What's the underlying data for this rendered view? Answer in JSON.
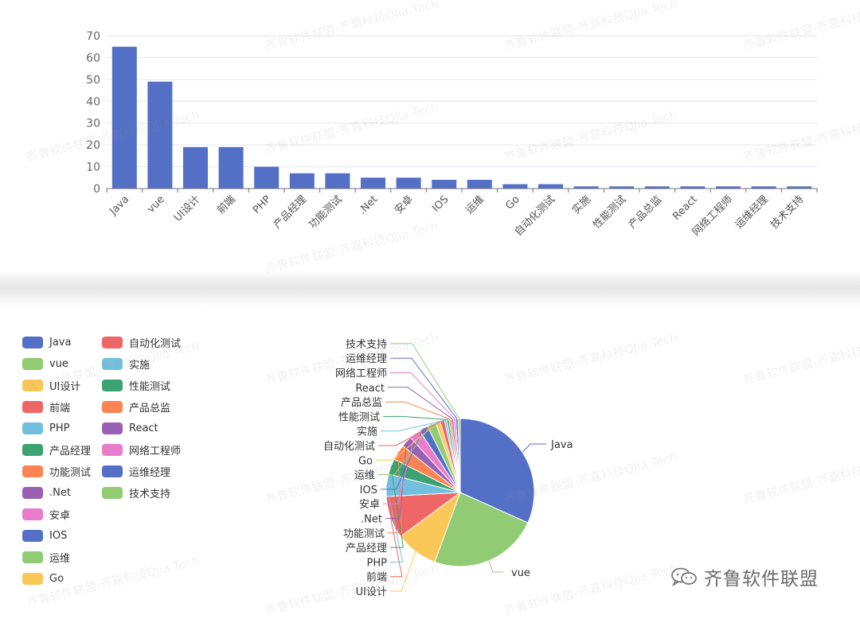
{
  "chart_data": [
    {
      "type": "bar",
      "categories": [
        "Java",
        "vue",
        "UI设计",
        "前端",
        "PHP",
        "产品经理",
        "功能测试",
        ".Net",
        "安卓",
        "IOS",
        "运维",
        "Go",
        "自动化测试",
        "实施",
        "性能测试",
        "产品总监",
        "React",
        "网络工程师",
        "运维经理",
        "技术支持"
      ],
      "values": [
        65,
        49,
        19,
        19,
        10,
        7,
        7,
        5,
        5,
        4,
        4,
        2,
        2,
        1,
        1,
        1,
        1,
        1,
        1,
        1
      ],
      "ylim": [
        0,
        70
      ],
      "yticks": [
        0,
        10,
        20,
        30,
        40,
        50,
        60,
        70
      ],
      "grid": true,
      "color": "#5470c6"
    },
    {
      "type": "pie",
      "categories": [
        "Java",
        "vue",
        "UI设计",
        "前端",
        "PHP",
        "产品经理",
        "功能测试",
        ".Net",
        "安卓",
        "IOS",
        "运维",
        "Go",
        "自动化测试",
        "实施",
        "性能测试",
        "产品总监",
        "React",
        "网络工程师",
        "运维经理",
        "技术支持"
      ],
      "values": [
        65,
        49,
        19,
        19,
        10,
        7,
        7,
        5,
        5,
        4,
        4,
        2,
        2,
        1,
        1,
        1,
        1,
        1,
        1,
        1
      ],
      "legend_position": "left",
      "colors": [
        "#5470c6",
        "#91cc75",
        "#fac858",
        "#ee6666",
        "#73c0de",
        "#3ba272",
        "#fc8452",
        "#9a60b4",
        "#ea7ccc"
      ]
    }
  ],
  "watermark": "齐鲁软件联盟-齐嘉科技QJia.Tech",
  "brand": {
    "name": "齐鲁软件联盟",
    "icon": "wechat-icon"
  }
}
